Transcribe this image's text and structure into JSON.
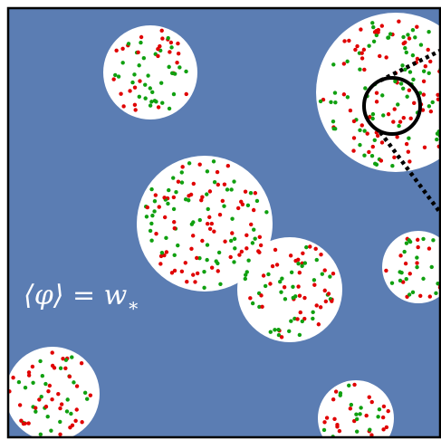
{
  "label": {
    "main": "⟨φ⟩ = w",
    "subscript": "∗"
  }
}
